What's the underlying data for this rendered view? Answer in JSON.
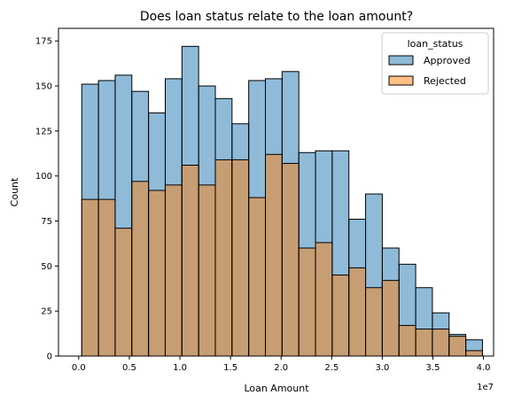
{
  "chart_data": {
    "type": "bar",
    "title": "Does loan status relate to the loan amount?",
    "xlabel": "Loan Amount",
    "ylabel": "Count",
    "x_offset_text": "1e7",
    "xlim": [
      -0.2,
      4.1
    ],
    "ylim": [
      0,
      182
    ],
    "x_ticks": [
      0.0,
      0.5,
      1.0,
      1.5,
      2.0,
      2.5,
      3.0,
      3.5,
      4.0
    ],
    "x_tick_labels": [
      "0.0",
      "0.5",
      "1.0",
      "1.5",
      "2.0",
      "2.5",
      "3.0",
      "3.5",
      "4.0"
    ],
    "y_ticks": [
      0,
      25,
      50,
      75,
      100,
      125,
      150,
      175
    ],
    "y_tick_labels": [
      "0",
      "25",
      "50",
      "75",
      "100",
      "125",
      "150",
      "175"
    ],
    "bin_edges": [
      0.03,
      0.195,
      0.36,
      0.525,
      0.69,
      0.855,
      1.02,
      1.185,
      1.35,
      1.515,
      1.68,
      1.845,
      2.01,
      2.175,
      2.34,
      2.505,
      2.67,
      2.835,
      3.0,
      3.165,
      3.33,
      3.495,
      3.66,
      3.825,
      3.99
    ],
    "series": [
      {
        "name": "Approved",
        "color": "#1f77b4",
        "values": [
          151,
          153,
          156,
          147,
          135,
          154,
          172,
          150,
          143,
          129,
          153,
          154,
          158,
          113,
          114,
          114,
          76,
          90,
          60,
          51,
          38,
          24,
          12,
          9
        ]
      },
      {
        "name": "Rejected",
        "color": "#ff7f0e",
        "values": [
          87,
          87,
          71,
          97,
          92,
          95,
          106,
          95,
          109,
          109,
          88,
          112,
          107,
          60,
          63,
          45,
          49,
          38,
          42,
          17,
          15,
          15,
          11,
          3
        ]
      }
    ],
    "legend": {
      "title": "loan_status",
      "placement": "top-right",
      "labels": [
        "Approved",
        "Rejected"
      ]
    },
    "grid": false
  }
}
